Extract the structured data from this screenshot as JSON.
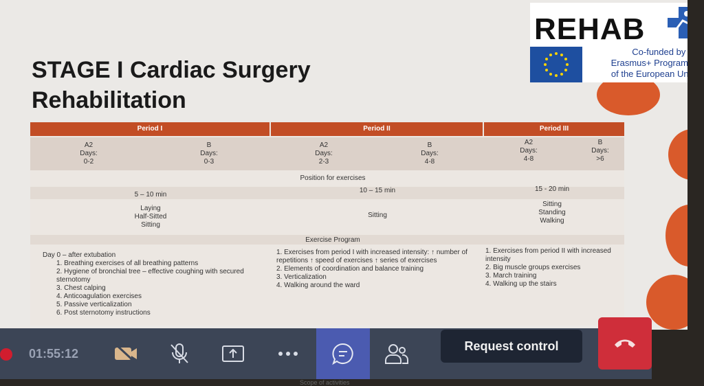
{
  "slide": {
    "title_line1": "STAGE I Cardiac Surgery",
    "title_line2": "Rehabilitation",
    "logo": {
      "word": "REHAB",
      "cofund_line1": "Co-funded by the",
      "cofund_line2": "Erasmus+ Programme",
      "cofund_line3": "of the European Union"
    },
    "table": {
      "periods": [
        "Period I",
        "Period II",
        "Period III"
      ],
      "groups": [
        {
          "label": "A2",
          "days_label": "Days:",
          "days": "0-2"
        },
        {
          "label": "B",
          "days_label": "Days:",
          "days": "0-3"
        },
        {
          "label": "A2",
          "days_label": "Days:",
          "days": "2-3"
        },
        {
          "label": "B",
          "days_label": "Days:",
          "days": "4-8"
        },
        {
          "label": "A2",
          "days_label": "Days:",
          "days": "4-8"
        },
        {
          "label": "B",
          "days_label": "Days:",
          "days": ">6"
        }
      ],
      "position_header": "Position for exercises",
      "durations": [
        "5 – 10 min",
        "10 – 15 min",
        "15 - 20 min"
      ],
      "positions": {
        "p1": [
          "Laying",
          "Half-Sitted",
          "Sitting"
        ],
        "p2": [
          "Sitting"
        ],
        "p3": [
          "Sitting",
          "Standing",
          "Walking"
        ]
      },
      "program_header": "Exercise Program",
      "program": {
        "p1_intro": "Day 0 – after extubation",
        "p1": [
          {
            "n": "1.",
            "text": "Breathing exercises of all breathing patterns"
          },
          {
            "n": "2.",
            "text": "Hygiene of bronchial tree – effective coughing with secured sternotomy"
          },
          {
            "n": "3.",
            "text": "Chest calping"
          },
          {
            "n": "4.",
            "text": "Anticoagulation exercises"
          },
          {
            "n": "5.",
            "text": "Passive verticalization"
          },
          {
            "n": "6.",
            "text": "Post sternotomy instructions"
          }
        ],
        "p2": [
          {
            "n": "1.",
            "text": "Exercises from period I with increased intensity: ↑ number of repetitions        ↑ speed of exercises ↑ series of exercises"
          },
          {
            "n": "2.",
            "text": "Elements of coordination and balance training"
          },
          {
            "n": "3.",
            "text": "Verticalization"
          },
          {
            "n": "4.",
            "text": "Walking around the ward"
          }
        ],
        "p3": [
          {
            "n": "1.",
            "text": "Exercises from period II with increased intensity"
          },
          {
            "n": "2.",
            "text": "Big muscle groups exercises"
          },
          {
            "n": "3.",
            "text": "March training"
          },
          {
            "n": "4.",
            "text": "Walking up the stairs"
          }
        ]
      }
    }
  },
  "toolbar": {
    "timer": "01:55:12",
    "request_control_label": "Request control",
    "below_text": "Scope of activities",
    "icons": [
      "camera-off-icon",
      "mic-off-icon",
      "share-screen-icon",
      "more-icon",
      "chat-icon",
      "participants-icon",
      "hang-up-icon"
    ],
    "colors": {
      "bar": "#3c4556",
      "active": "#4b5bb0",
      "hangup": "#cf2e3a",
      "record": "#d11d2e"
    }
  }
}
